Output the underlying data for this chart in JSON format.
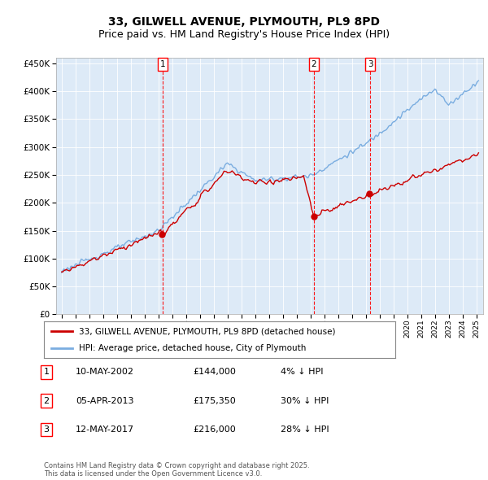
{
  "title": "33, GILWELL AVENUE, PLYMOUTH, PL9 8PD",
  "subtitle": "Price paid vs. HM Land Registry's House Price Index (HPI)",
  "ylim": [
    0,
    460000
  ],
  "yticks": [
    0,
    50000,
    100000,
    150000,
    200000,
    250000,
    300000,
    350000,
    400000,
    450000
  ],
  "bg_color": "#ddeaf7",
  "red_color": "#cc0000",
  "blue_color": "#7aade0",
  "legend1": "33, GILWELL AVENUE, PLYMOUTH, PL9 8PD (detached house)",
  "legend2": "HPI: Average price, detached house, City of Plymouth",
  "sale_dates": [
    "10-MAY-2002",
    "05-APR-2013",
    "12-MAY-2017"
  ],
  "sale_prices": [
    144000,
    175350,
    216000
  ],
  "sale_labels": [
    "1",
    "2",
    "3"
  ],
  "sale_pct": [
    "4% ↓ HPI",
    "30% ↓ HPI",
    "28% ↓ HPI"
  ],
  "footer": "Contains HM Land Registry data © Crown copyright and database right 2025.\nThis data is licensed under the Open Government Licence v3.0.",
  "title_fontsize": 10,
  "subtitle_fontsize": 9
}
